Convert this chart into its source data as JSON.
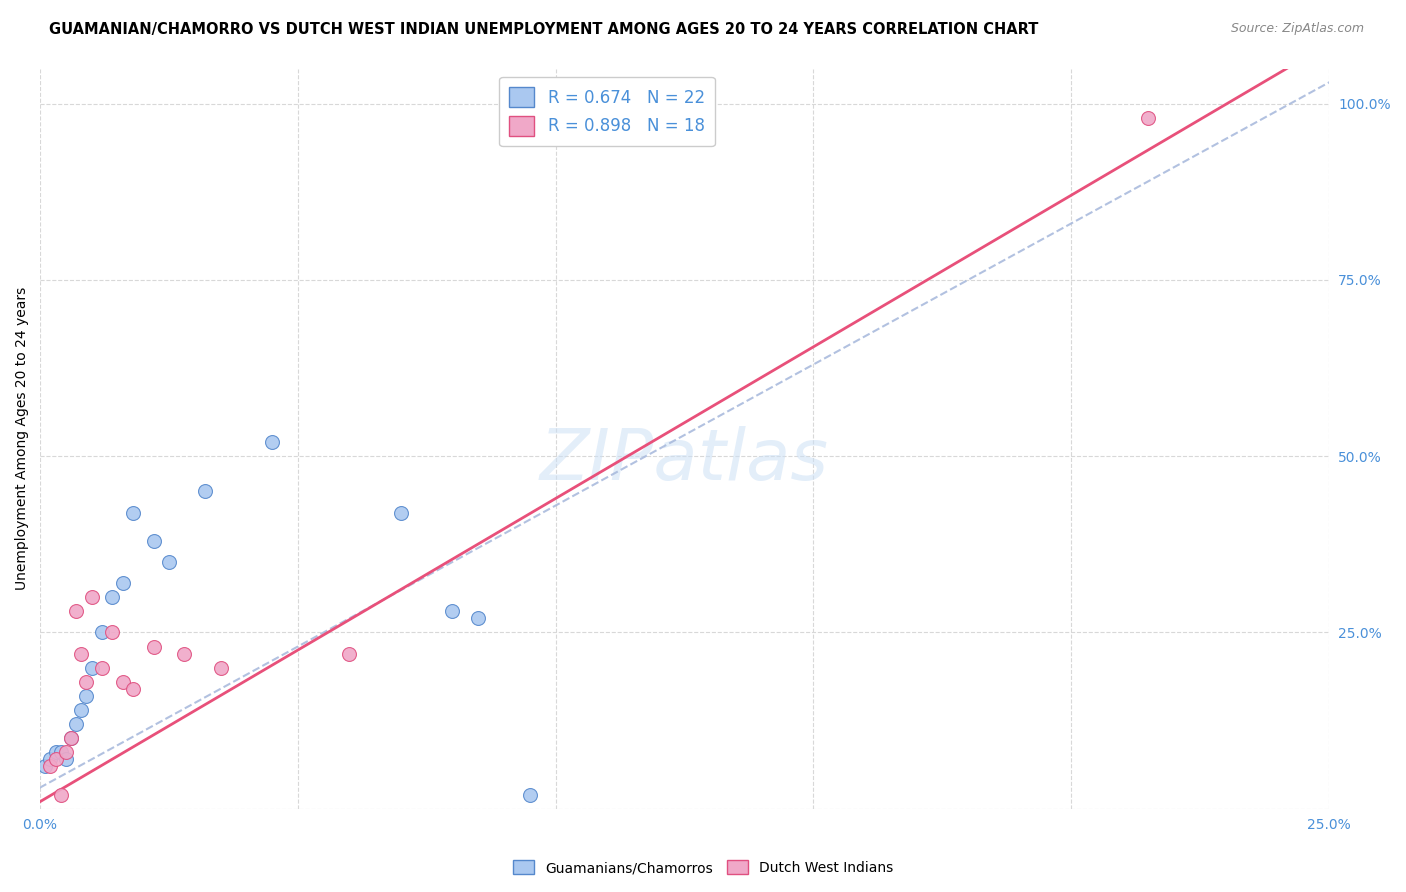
{
  "title": "GUAMANIAN/CHAMORRO VS DUTCH WEST INDIAN UNEMPLOYMENT AMONG AGES 20 TO 24 YEARS CORRELATION CHART",
  "source": "Source: ZipAtlas.com",
  "ylabel": "Unemployment Among Ages 20 to 24 years",
  "xlim": [
    0.0,
    0.25
  ],
  "ylim": [
    0.0,
    1.05
  ],
  "R_blue": 0.674,
  "N_blue": 22,
  "R_pink": 0.898,
  "N_pink": 18,
  "blue_fill": "#aac8f0",
  "blue_edge": "#5588cc",
  "pink_fill": "#f0a8c8",
  "pink_edge": "#e05080",
  "blue_line_color": "#aabbdd",
  "pink_line_color": "#e8507a",
  "legend_label_blue": "Guamanians/Chamorros",
  "legend_label_pink": "Dutch West Indians",
  "watermark": "ZIPatlas",
  "background_color": "#ffffff",
  "grid_color": "#d8d8d8",
  "blue_x": [
    0.001,
    0.002,
    0.003,
    0.004,
    0.005,
    0.006,
    0.007,
    0.008,
    0.009,
    0.01,
    0.012,
    0.014,
    0.016,
    0.018,
    0.022,
    0.025,
    0.032,
    0.045,
    0.07,
    0.08,
    0.085,
    0.095
  ],
  "blue_y": [
    0.06,
    0.07,
    0.08,
    0.08,
    0.07,
    0.1,
    0.12,
    0.14,
    0.16,
    0.2,
    0.25,
    0.3,
    0.32,
    0.42,
    0.38,
    0.35,
    0.45,
    0.52,
    0.42,
    0.28,
    0.27,
    0.02
  ],
  "pink_x": [
    0.002,
    0.003,
    0.004,
    0.005,
    0.006,
    0.007,
    0.008,
    0.009,
    0.01,
    0.012,
    0.014,
    0.016,
    0.018,
    0.022,
    0.028,
    0.035,
    0.06,
    0.215
  ],
  "pink_y": [
    0.06,
    0.07,
    0.02,
    0.08,
    0.1,
    0.28,
    0.22,
    0.18,
    0.3,
    0.2,
    0.25,
    0.18,
    0.17,
    0.23,
    0.22,
    0.2,
    0.22,
    0.98
  ],
  "blue_line_slope": 4.0,
  "blue_line_intercept": 0.04,
  "pink_line_slope": 4.5,
  "pink_line_intercept": 0.005
}
